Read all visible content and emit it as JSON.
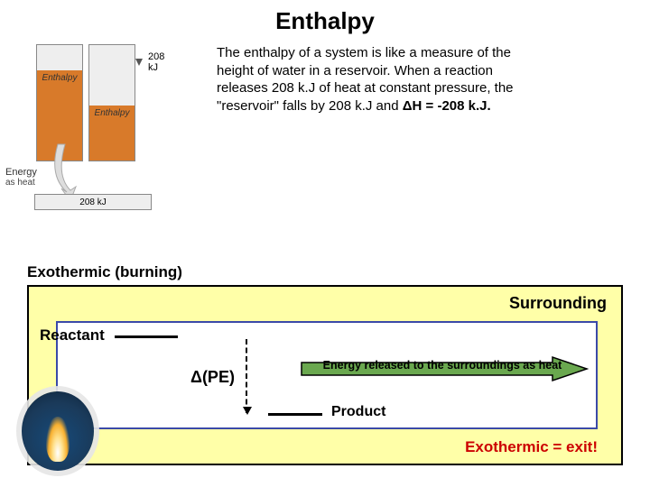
{
  "title": "Enthalpy",
  "reservoirs": {
    "left": {
      "fill_pct": 78,
      "label": "Enthalpy",
      "color": "#d87a2a"
    },
    "right": {
      "fill_pct": 48,
      "label": "Enthalpy",
      "color": "#d87a2a"
    },
    "drop_label": "208 kJ",
    "energy_caption_line1": "Energy",
    "energy_caption_line2": "as heat",
    "bottom_box_label": "208 kJ",
    "border_color": "#888888",
    "bg_color": "#eeeeee"
  },
  "paragraph": {
    "pre": "The enthalpy of a system is like a measure of the height of water in a reservoir. When a reaction releases 208 k.J of heat at constant pressure, the \"reservoir\" falls by 208 k.J and ",
    "bold": "ΔH = -208 k.J.",
    "fontsize": 15
  },
  "exo_section_label": "Exothermic (burning)",
  "diagram": {
    "outer_bg": "#ffffa8",
    "outer_border": "#000000",
    "inner_bg": "#ffffff",
    "inner_border": "#3b4aa8",
    "surrounding_label": "Surrounding",
    "reactant_label": "Reactant",
    "product_label": "Product",
    "delta_pe_label": "Δ(PE)",
    "energy_arrow_text": "Energy released to the surroundings as heat",
    "arrow_fill": "#6aa84f",
    "arrow_stroke": "#000000",
    "exit_line": "Exothermic = exit!",
    "exit_color": "#cc0000"
  }
}
